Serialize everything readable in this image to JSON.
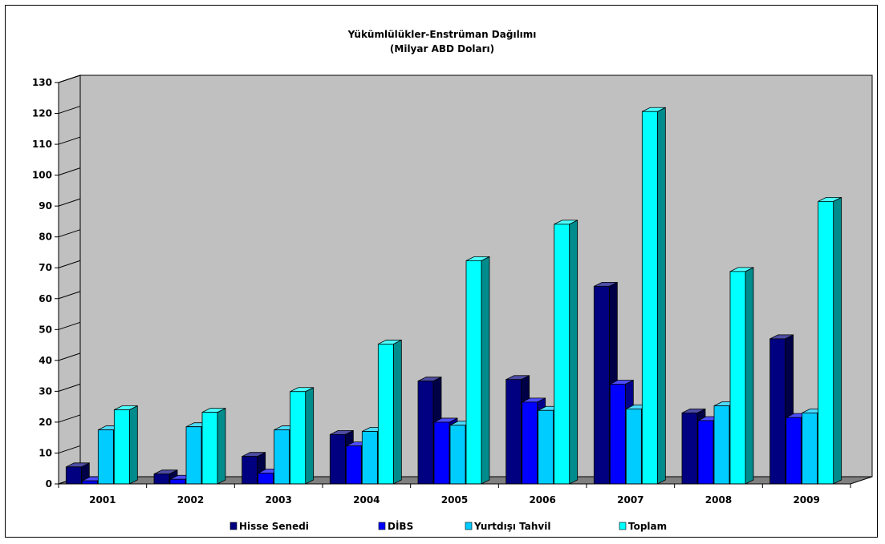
{
  "chart_data": {
    "type": "bar",
    "title": "Yükümlülükler-Enstrüman Dağılımı",
    "subtitle": "(Milyar ABD Doları)",
    "categories": [
      "2001",
      "2002",
      "2003",
      "2004",
      "2005",
      "2006",
      "2007",
      "2008",
      "2009"
    ],
    "series": [
      {
        "name": "Hisse Senedi",
        "color": "#000080",
        "values": [
          5.5,
          3.2,
          8.9,
          16,
          33.3,
          33.8,
          64,
          23,
          47
        ]
      },
      {
        "name": "DİBS",
        "color": "#0000FF",
        "values": [
          1,
          1.5,
          3.5,
          12.3,
          20,
          26.5,
          32.3,
          20.5,
          21.5
        ]
      },
      {
        "name": "Yurtdışı Tahvil",
        "color": "#00CCFF",
        "values": [
          17.5,
          18.5,
          17.5,
          17,
          19,
          23.8,
          24.3,
          25.3,
          23
        ]
      },
      {
        "name": "Toplam",
        "color": "#00FFFF",
        "values": [
          24,
          23.2,
          29.9,
          45.3,
          72.3,
          84.1,
          120.6,
          68.8,
          91.5
        ]
      }
    ],
    "y_ticks": [
      "0",
      "10",
      "20",
      "30",
      "40",
      "50",
      "60",
      "70",
      "80",
      "90",
      "100",
      "110",
      "120",
      "130"
    ],
    "ylim": [
      0,
      130
    ],
    "grid": false,
    "legend_position": "bottom",
    "wall_color": "#C0C0C0",
    "floor_color": "#808080"
  }
}
